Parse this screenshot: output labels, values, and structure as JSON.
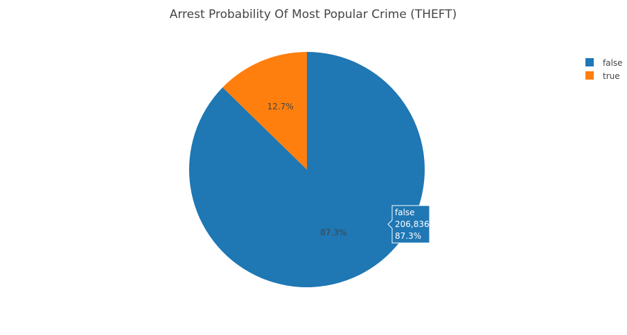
{
  "chart_data": {
    "type": "pie",
    "title": "Arrest Probability Of Most Popular Crime (THEFT)",
    "labels": [
      "false",
      "true"
    ],
    "percents": [
      87.3,
      12.7
    ],
    "percent_labels": [
      "87.3%",
      "12.7%"
    ],
    "colors": [
      "#1f77b4",
      "#ff7f0e"
    ],
    "legend": {
      "placement": "top-right",
      "entries": [
        "false",
        "true"
      ]
    },
    "hover": {
      "label": "false",
      "value": "206,836",
      "percent": "87.3%"
    }
  }
}
